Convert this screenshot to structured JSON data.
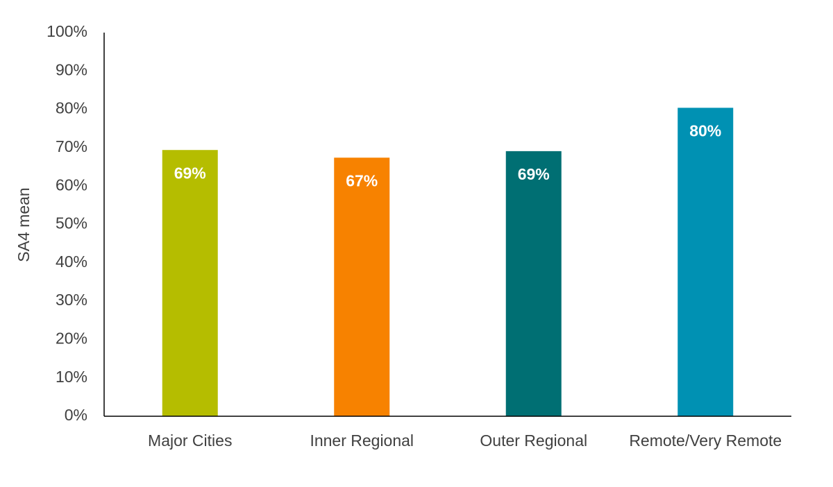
{
  "chart_data": {
    "type": "bar",
    "y_label": "SA4 mean",
    "categories": [
      "Major Cities",
      "Inner Regional",
      "Outer Regional",
      "Remote/Very Remote"
    ],
    "values": [
      69.4,
      67.4,
      69.1,
      80.4
    ],
    "value_labels": [
      "69%",
      "67%",
      "69%",
      "80%"
    ],
    "colors": [
      "#b5bd00",
      "#f78200",
      "#006f73",
      "#0091b3"
    ],
    "ylim": [
      0,
      100
    ],
    "yticks": [
      {
        "value": 0,
        "label": "0%"
      },
      {
        "value": 10,
        "label": "10%"
      },
      {
        "value": 20,
        "label": "20%"
      },
      {
        "value": 30,
        "label": "30%"
      },
      {
        "value": 40,
        "label": "40%"
      },
      {
        "value": 50,
        "label": "50%"
      },
      {
        "value": 60,
        "label": "60%"
      },
      {
        "value": 70,
        "label": "70%"
      },
      {
        "value": 80,
        "label": "80%"
      },
      {
        "value": 90,
        "label": "90%"
      },
      {
        "value": 100,
        "label": "100%"
      }
    ],
    "grid": false
  }
}
